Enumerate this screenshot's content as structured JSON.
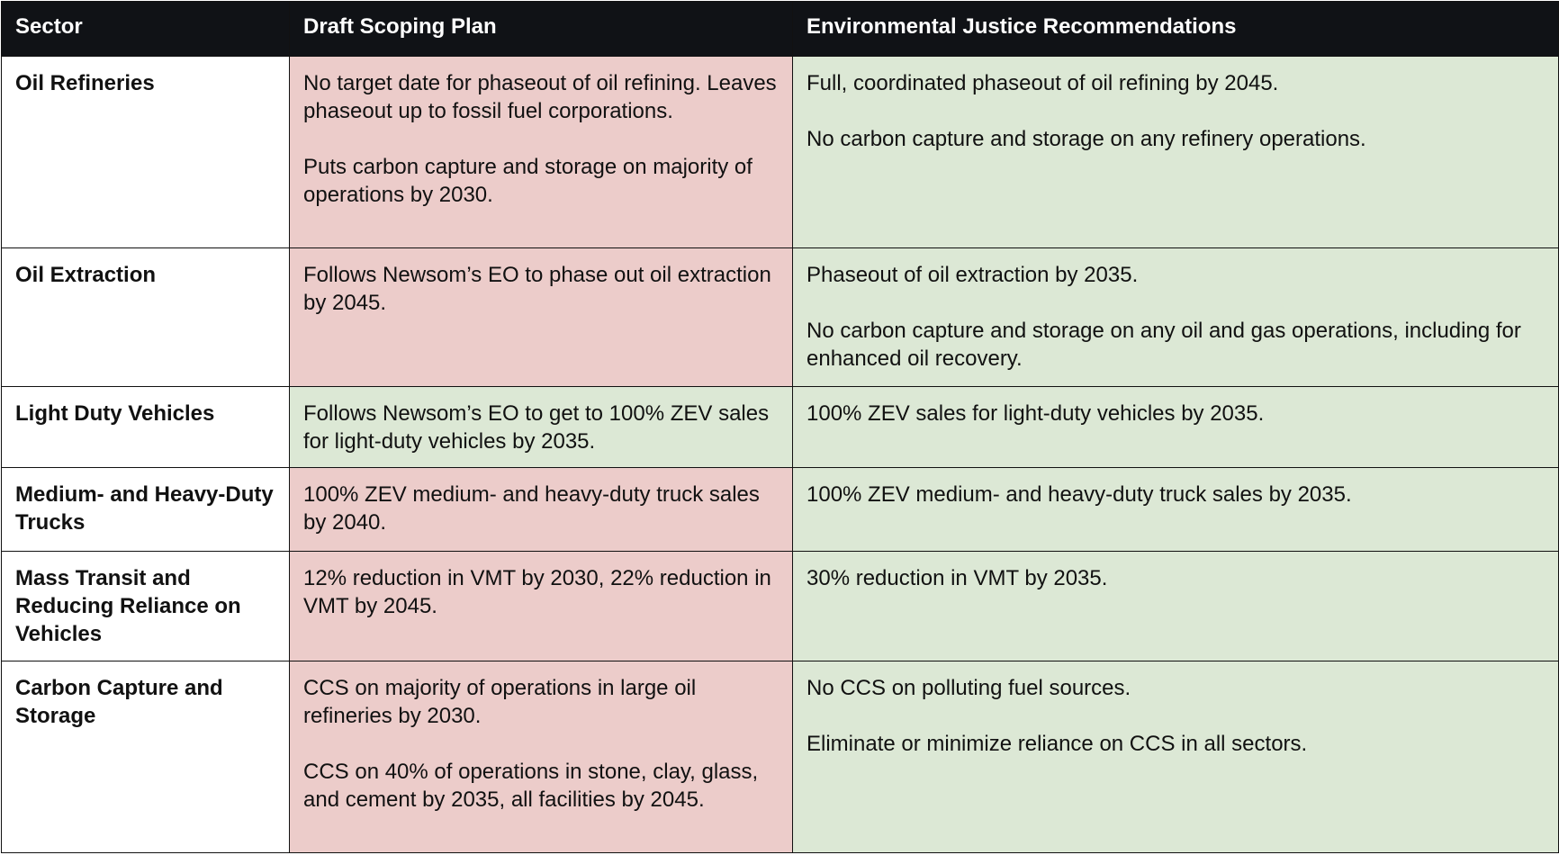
{
  "table": {
    "header": [
      "Sector",
      "Draft Scoping Plan",
      "Environmental Justice Recommendations"
    ],
    "rows": [
      {
        "sector": "Oil Refineries",
        "plan_color": "#ecccca",
        "plan": [
          "No target date for phaseout of oil refining. Leaves phaseout up to fossil fuel corporations.",
          "Puts carbon capture and storage on majority of operations by 2030."
        ],
        "recommendations": [
          "Full, coordinated phaseout of oil refining by 2045.",
          "No carbon capture and storage on any refinery operations."
        ]
      },
      {
        "sector": "Oil Extraction",
        "plan_color": "#ecccca",
        "plan": [
          "Follows Newsom’s EO to phase out oil extraction by 2045."
        ],
        "recommendations": [
          "Phaseout of oil extraction by 2035.",
          "No carbon capture and storage on any oil and gas operations, including for enhanced oil recovery."
        ]
      },
      {
        "sector": "Light Duty Vehicles",
        "plan_color": "#dce8d5",
        "plan": [
          "Follows Newsom’s EO to get to 100% ZEV sales for light-duty vehicles by 2035."
        ],
        "recommendations": [
          "100% ZEV sales for light-duty vehicles by 2035."
        ]
      },
      {
        "sector": "Medium- and Heavy-Duty Trucks",
        "plan_color": "#ecccca",
        "plan": [
          "100% ZEV medium- and heavy-duty truck sales by 2040."
        ],
        "recommendations": [
          "100% ZEV medium- and heavy-duty truck sales by 2035."
        ]
      },
      {
        "sector": "Mass Transit and Reducing Reliance on Vehicles",
        "plan_color": "#ecccca",
        "plan": [
          "12% reduction in VMT by 2030, 22% reduction in VMT by 2045."
        ],
        "recommendations": [
          "30% reduction in VMT by 2035."
        ]
      },
      {
        "sector": "Carbon Capture and Storage",
        "plan_color": "#ecccca",
        "plan": [
          "CCS on majority of operations in large oil refineries by 2030.",
          "CCS on 40% of operations in stone, clay, glass, and cement by 2035, all facilities by 2045."
        ],
        "recommendations": [
          "No CCS on polluting fuel sources.",
          "Eliminate or minimize reliance on CCS in all sectors."
        ]
      }
    ]
  }
}
